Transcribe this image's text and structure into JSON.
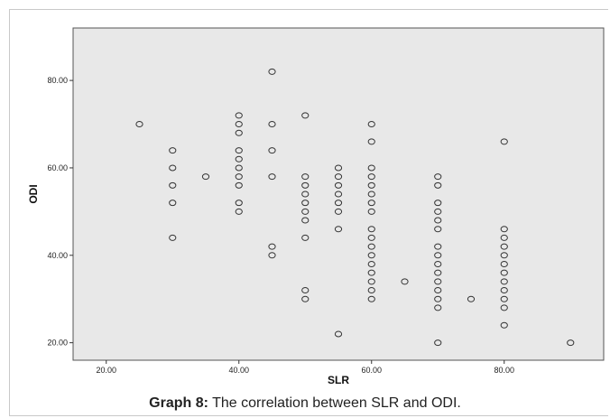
{
  "caption": {
    "label": "Graph 8:",
    "text": " The correlation between SLR and ODI."
  },
  "chart_data": {
    "type": "scatter",
    "xlabel": "SLR",
    "ylabel": "ODI",
    "xlim": [
      15,
      95
    ],
    "ylim": [
      16,
      92
    ],
    "xticks": [
      20,
      40,
      60,
      80
    ],
    "xtick_labels": [
      "20.00",
      "40.00",
      "60.00",
      "80.00"
    ],
    "yticks": [
      20,
      40,
      60,
      80
    ],
    "ytick_labels": [
      "20.00",
      "40.00",
      "60.00",
      "80.00"
    ],
    "grid": false,
    "background_color": "#e8e8e8",
    "marker_color": "#333333",
    "points": [
      [
        25,
        70
      ],
      [
        30,
        64
      ],
      [
        30,
        60
      ],
      [
        30,
        56
      ],
      [
        30,
        52
      ],
      [
        30,
        44
      ],
      [
        35,
        58
      ],
      [
        40,
        72
      ],
      [
        40,
        70
      ],
      [
        40,
        68
      ],
      [
        40,
        64
      ],
      [
        40,
        62
      ],
      [
        40,
        60
      ],
      [
        40,
        58
      ],
      [
        40,
        56
      ],
      [
        40,
        52
      ],
      [
        40,
        50
      ],
      [
        45,
        82
      ],
      [
        45,
        70
      ],
      [
        45,
        64
      ],
      [
        45,
        58
      ],
      [
        45,
        42
      ],
      [
        45,
        40
      ],
      [
        50,
        72
      ],
      [
        50,
        58
      ],
      [
        50,
        56
      ],
      [
        50,
        54
      ],
      [
        50,
        52
      ],
      [
        50,
        50
      ],
      [
        50,
        48
      ],
      [
        50,
        44
      ],
      [
        50,
        32
      ],
      [
        50,
        30
      ],
      [
        55,
        60
      ],
      [
        55,
        58
      ],
      [
        55,
        56
      ],
      [
        55,
        54
      ],
      [
        55,
        52
      ],
      [
        55,
        50
      ],
      [
        55,
        46
      ],
      [
        55,
        22
      ],
      [
        60,
        70
      ],
      [
        60,
        66
      ],
      [
        60,
        60
      ],
      [
        60,
        58
      ],
      [
        60,
        56
      ],
      [
        60,
        54
      ],
      [
        60,
        52
      ],
      [
        60,
        50
      ],
      [
        60,
        46
      ],
      [
        60,
        44
      ],
      [
        60,
        42
      ],
      [
        60,
        40
      ],
      [
        60,
        38
      ],
      [
        60,
        36
      ],
      [
        60,
        34
      ],
      [
        60,
        32
      ],
      [
        60,
        30
      ],
      [
        65,
        34
      ],
      [
        70,
        58
      ],
      [
        70,
        56
      ],
      [
        70,
        52
      ],
      [
        70,
        50
      ],
      [
        70,
        48
      ],
      [
        70,
        46
      ],
      [
        70,
        42
      ],
      [
        70,
        40
      ],
      [
        70,
        38
      ],
      [
        70,
        36
      ],
      [
        70,
        34
      ],
      [
        70,
        32
      ],
      [
        70,
        30
      ],
      [
        70,
        28
      ],
      [
        70,
        20
      ],
      [
        75,
        30
      ],
      [
        80,
        66
      ],
      [
        80,
        46
      ],
      [
        80,
        44
      ],
      [
        80,
        42
      ],
      [
        80,
        40
      ],
      [
        80,
        38
      ],
      [
        80,
        36
      ],
      [
        80,
        34
      ],
      [
        80,
        32
      ],
      [
        80,
        30
      ],
      [
        80,
        28
      ],
      [
        80,
        24
      ],
      [
        90,
        20
      ]
    ]
  }
}
